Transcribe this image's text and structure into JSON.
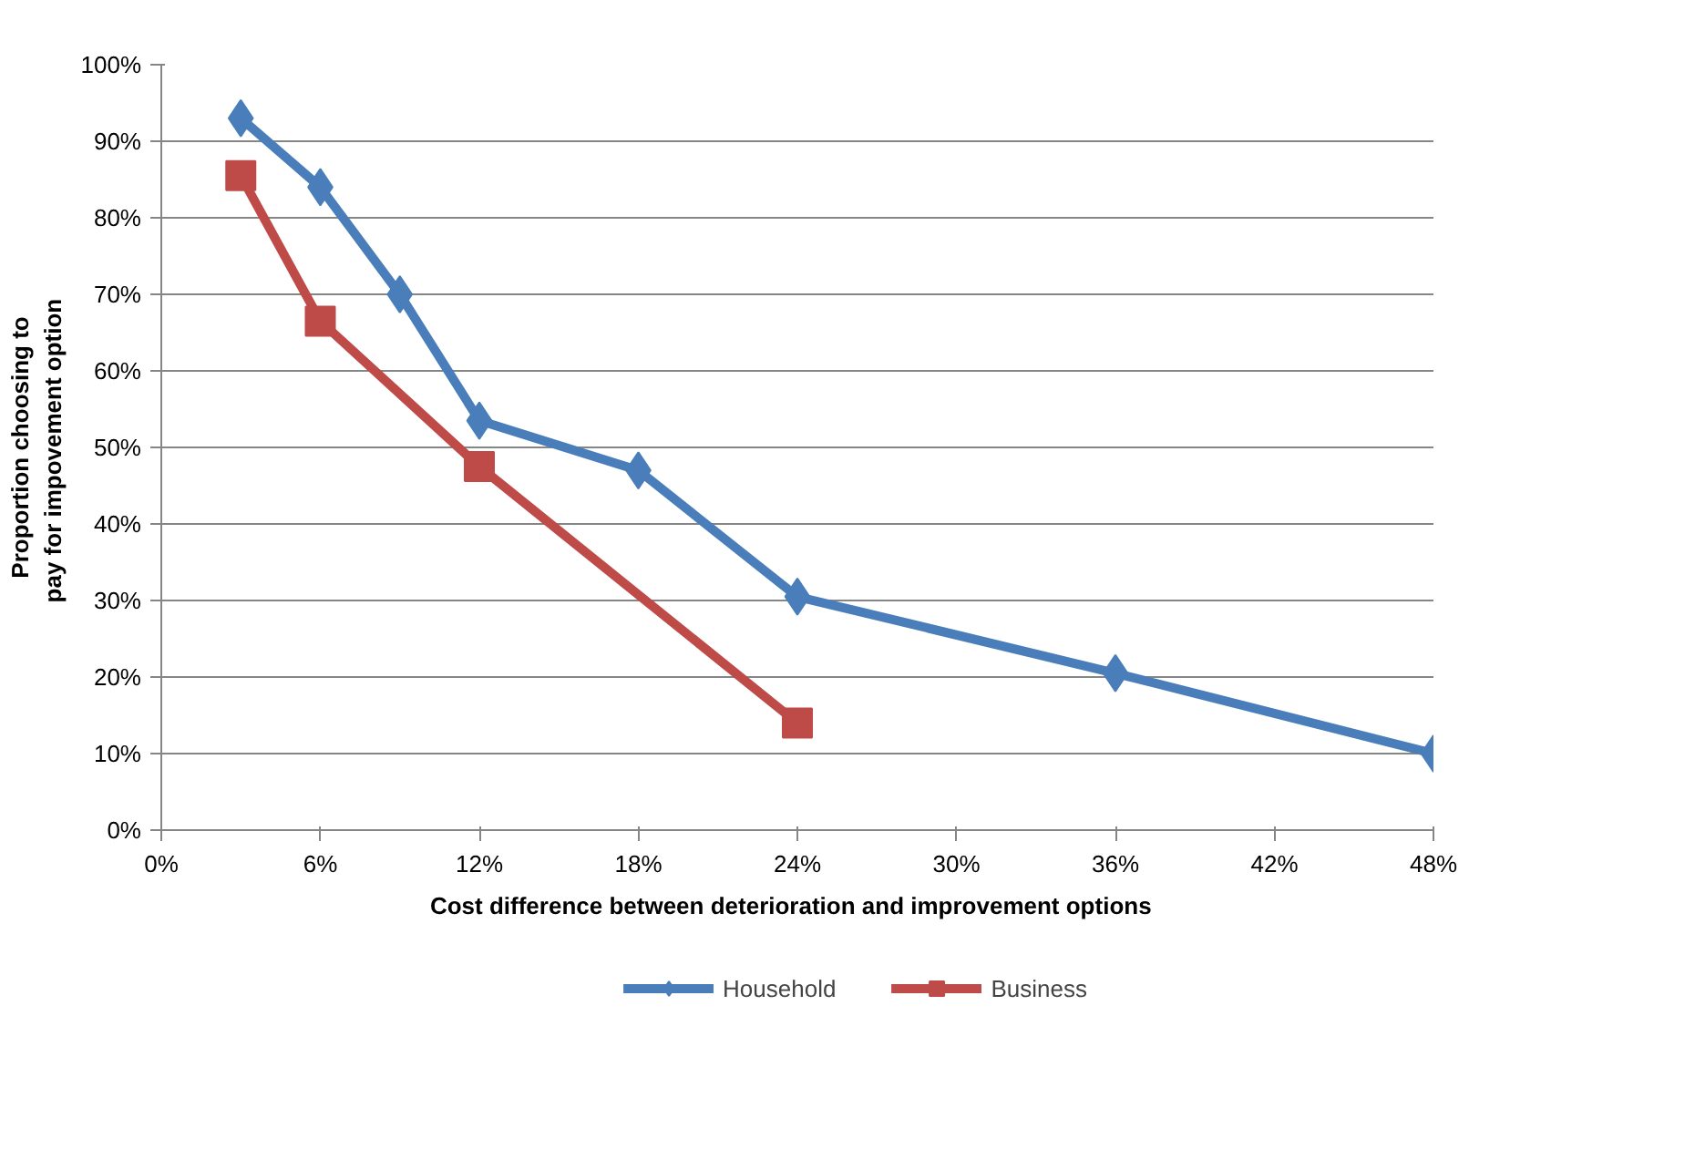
{
  "chart_data": {
    "type": "line",
    "xlabel": "Cost difference  between deterioration and  improvement options",
    "ylabel": "Proportion choosing to pay  for impovement option",
    "series": [
      {
        "name": "Household",
        "color": "#4a7ebb",
        "marker": "diamond",
        "x": [
          3,
          6,
          9,
          12,
          18,
          24,
          36,
          48
        ],
        "values": [
          93,
          84,
          70,
          53.5,
          47,
          30.5,
          20.5,
          10
        ]
      },
      {
        "name": "Business",
        "color": "#be4b48",
        "marker": "square",
        "x": [
          3,
          6,
          12,
          24
        ],
        "values": [
          85.5,
          66.5,
          47.5,
          14
        ]
      }
    ],
    "xlim": [
      0,
      48
    ],
    "ylim": [
      0,
      100
    ],
    "xticks": [
      {
        "value": 0,
        "label": "0%"
      },
      {
        "value": 6,
        "label": "6%"
      },
      {
        "value": 12,
        "label": "12%"
      },
      {
        "value": 18,
        "label": "18%"
      },
      {
        "value": 24,
        "label": "24%"
      },
      {
        "value": 30,
        "label": "30%"
      },
      {
        "value": 36,
        "label": "36%"
      },
      {
        "value": 42,
        "label": "42%"
      },
      {
        "value": 48,
        "label": "48%"
      }
    ],
    "yticks": [
      {
        "value": 0,
        "label": "0%"
      },
      {
        "value": 10,
        "label": "10%"
      },
      {
        "value": 20,
        "label": "20%"
      },
      {
        "value": 30,
        "label": "30%"
      },
      {
        "value": 40,
        "label": "40%"
      },
      {
        "value": 50,
        "label": "50%"
      },
      {
        "value": 60,
        "label": "60%"
      },
      {
        "value": 70,
        "label": "70%"
      },
      {
        "value": 80,
        "label": "80%"
      },
      {
        "value": 90,
        "label": "90%"
      },
      {
        "value": 100,
        "label": "100%"
      }
    ],
    "grid": "y",
    "legend": "bottom",
    "line_style": "solid"
  }
}
